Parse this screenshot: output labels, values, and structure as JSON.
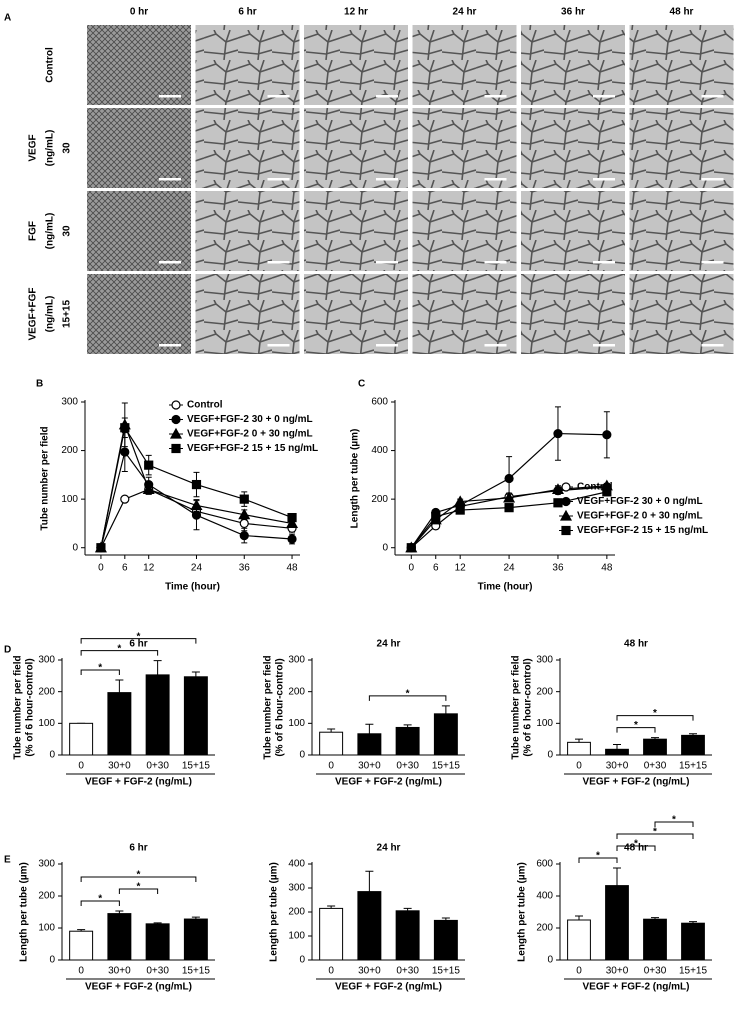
{
  "panel_labels": [
    "A",
    "B",
    "C",
    "D",
    "E"
  ],
  "panel_a": {
    "columns": [
      "0 hr",
      "6 hr",
      "12 hr",
      "24 hr",
      "36 hr",
      "48 hr"
    ],
    "rows": [
      [
        "Control"
      ],
      [
        "VEGF",
        "(ng/mL)",
        "30"
      ],
      [
        "FGF",
        "(ng/mL)",
        "30"
      ],
      [
        "VEGF+FGF",
        "(ng/mL)",
        "15+15"
      ]
    ]
  },
  "chart_data": [
    {
      "type": "line",
      "xlabel": "Time (hour)",
      "ylabel": "Tube number per field",
      "x": [
        0,
        6,
        12,
        24,
        36,
        48
      ],
      "xlim": [
        -4,
        50
      ],
      "xticks": [
        0,
        6,
        12,
        24,
        36,
        48
      ],
      "ylim": [
        -15,
        300
      ],
      "yticks": [
        0,
        100,
        200,
        300
      ],
      "legend": "upper right",
      "series": [
        {
          "name": "Control",
          "color": "#000000",
          "marker": "open-circle",
          "values": [
            0,
            100,
            120,
            75,
            50,
            40
          ],
          "errors": [
            0,
            5,
            10,
            10,
            15,
            8
          ]
        },
        {
          "name": "VEGF+FGF-2 30 +  0 ng/mL",
          "color": "#000000",
          "marker": "circle",
          "values": [
            0,
            197,
            130,
            67,
            25,
            18
          ],
          "errors": [
            0,
            40,
            15,
            30,
            15,
            10
          ]
        },
        {
          "name": "VEGF+FGF-2  0 + 30 ng/mL",
          "color": "#000000",
          "marker": "triangle",
          "values": [
            0,
            253,
            120,
            87,
            68,
            50
          ],
          "errors": [
            0,
            45,
            10,
            12,
            10,
            5
          ]
        },
        {
          "name": "VEGF+FGF-2 15 + 15 ng/mL",
          "color": "#000000",
          "marker": "square",
          "values": [
            0,
            247,
            170,
            130,
            100,
            62
          ],
          "errors": [
            0,
            20,
            20,
            25,
            15,
            8
          ]
        }
      ]
    },
    {
      "type": "line",
      "xlabel": "Time (hour)",
      "ylabel": "Length per tube (µm)",
      "x": [
        0,
        6,
        12,
        24,
        36,
        48
      ],
      "xlim": [
        -4,
        50
      ],
      "xticks": [
        0,
        6,
        12,
        24,
        36,
        48
      ],
      "ylim": [
        -30,
        600
      ],
      "yticks": [
        0,
        200,
        400,
        600
      ],
      "legend": "lower right",
      "series": [
        {
          "name": "Control",
          "color": "#000000",
          "marker": "open-circle",
          "values": [
            0,
            90,
            170,
            210,
            235,
            250
          ],
          "errors": [
            0,
            10,
            10,
            15,
            15,
            10
          ]
        },
        {
          "name": "VEGF+FGF-2 30 +  0 ng/mL",
          "color": "#000000",
          "marker": "circle",
          "values": [
            0,
            145,
            175,
            285,
            470,
            465
          ],
          "errors": [
            0,
            10,
            15,
            90,
            110,
            95
          ]
        },
        {
          "name": "VEGF+FGF-2  0 + 30 ng/mL",
          "color": "#000000",
          "marker": "triangle",
          "values": [
            0,
            115,
            190,
            205,
            240,
            255
          ],
          "errors": [
            0,
            8,
            10,
            15,
            15,
            10
          ]
        },
        {
          "name": "VEGF+FGF-2 15 + 15 ng/mL",
          "color": "#000000",
          "marker": "square",
          "values": [
            0,
            128,
            155,
            165,
            185,
            230
          ],
          "errors": [
            0,
            8,
            8,
            8,
            8,
            10
          ]
        }
      ]
    },
    {
      "type": "bar",
      "title": "6 hr",
      "xlabel": "VEGF + FGF-2 (ng/mL)",
      "ylabel": [
        "Tube number per field",
        "(% of 6 hour-control)"
      ],
      "categories": [
        "0",
        "30+0",
        "0+30",
        "15+15"
      ],
      "values": [
        100,
        197,
        253,
        247
      ],
      "errors": [
        0,
        40,
        45,
        15
      ],
      "colors": [
        "#ffffff",
        "#000000",
        "#000000",
        "#000000"
      ],
      "ylim": [
        0,
        300
      ],
      "yticks": [
        0,
        100,
        200,
        300
      ],
      "brackets": [
        {
          "between": [
            "0",
            "30+0"
          ],
          "label": "*"
        },
        {
          "between": [
            "0",
            "0+30"
          ],
          "label": "*"
        },
        {
          "between": [
            "0",
            "15+15"
          ],
          "label": "*"
        }
      ]
    },
    {
      "type": "bar",
      "title": "24 hr",
      "xlabel": "VEGF + FGF-2 (ng/mL)",
      "ylabel": [
        "Tube number per field",
        "(% of 6 hour-control)"
      ],
      "categories": [
        "0",
        "30+0",
        "0+30",
        "15+15"
      ],
      "values": [
        72,
        67,
        87,
        130
      ],
      "errors": [
        10,
        30,
        8,
        25
      ],
      "colors": [
        "#ffffff",
        "#000000",
        "#000000",
        "#000000"
      ],
      "ylim": [
        0,
        300
      ],
      "yticks": [
        0,
        100,
        200,
        300
      ],
      "brackets": [
        {
          "between": [
            "30+0",
            "15+15"
          ],
          "label": "*"
        }
      ]
    },
    {
      "type": "bar",
      "title": "48 hr",
      "xlabel": "VEGF + FGF-2 (ng/mL)",
      "ylabel": [
        "Tube number per field",
        "(% of 6 hour-control)"
      ],
      "categories": [
        "0",
        "30+0",
        "0+30",
        "15+15"
      ],
      "values": [
        40,
        18,
        50,
        62
      ],
      "errors": [
        10,
        15,
        5,
        5
      ],
      "colors": [
        "#ffffff",
        "#000000",
        "#000000",
        "#000000"
      ],
      "ylim": [
        0,
        300
      ],
      "yticks": [
        0,
        100,
        200,
        300
      ],
      "brackets": [
        {
          "between": [
            "30+0",
            "0+30"
          ],
          "label": "*"
        },
        {
          "between": [
            "30+0",
            "15+15"
          ],
          "label": "*"
        }
      ]
    },
    {
      "type": "bar",
      "title": "6 hr",
      "xlabel": "VEGF + FGF-2 (ng/mL)",
      "ylabel": [
        "Length per tube (µm)"
      ],
      "categories": [
        "0",
        "30+0",
        "0+30",
        "15+15"
      ],
      "values": [
        90,
        145,
        113,
        128
      ],
      "errors": [
        5,
        8,
        3,
        6
      ],
      "colors": [
        "#ffffff",
        "#000000",
        "#000000",
        "#000000"
      ],
      "ylim": [
        0,
        300
      ],
      "yticks": [
        0,
        100,
        200,
        300
      ],
      "brackets": [
        {
          "between": [
            "0",
            "30+0"
          ],
          "label": "*"
        },
        {
          "between": [
            "30+0",
            "0+30"
          ],
          "label": "*"
        },
        {
          "between": [
            "0",
            "15+15"
          ],
          "label": "*"
        }
      ]
    },
    {
      "type": "bar",
      "title": "24 hr",
      "xlabel": "VEGF + FGF-2 (ng/mL)",
      "ylabel": [
        "Length per tube (µm)"
      ],
      "categories": [
        "0",
        "30+0",
        "0+30",
        "15+15"
      ],
      "values": [
        215,
        285,
        205,
        165
      ],
      "errors": [
        10,
        85,
        10,
        10
      ],
      "colors": [
        "#ffffff",
        "#000000",
        "#000000",
        "#000000"
      ],
      "ylim": [
        0,
        400
      ],
      "yticks": [
        0,
        100,
        200,
        300,
        400
      ],
      "brackets": []
    },
    {
      "type": "bar",
      "title": "48 hr",
      "xlabel": "VEGF + FGF-2 (ng/mL)",
      "ylabel": [
        "Length per tube (µm)"
      ],
      "categories": [
        "0",
        "30+0",
        "0+30",
        "15+15"
      ],
      "values": [
        250,
        465,
        255,
        230
      ],
      "errors": [
        25,
        110,
        10,
        10
      ],
      "colors": [
        "#ffffff",
        "#000000",
        "#000000",
        "#000000"
      ],
      "ylim": [
        0,
        600
      ],
      "yticks": [
        0,
        200,
        400,
        600
      ],
      "brackets": [
        {
          "between": [
            "0",
            "30+0"
          ],
          "label": "*"
        },
        {
          "between": [
            "30+0",
            "0+30"
          ],
          "label": "*"
        },
        {
          "between": [
            "30+0",
            "15+15"
          ],
          "label": "*"
        },
        {
          "between": [
            "0+30",
            "15+15"
          ],
          "label": "*"
        }
      ]
    }
  ]
}
